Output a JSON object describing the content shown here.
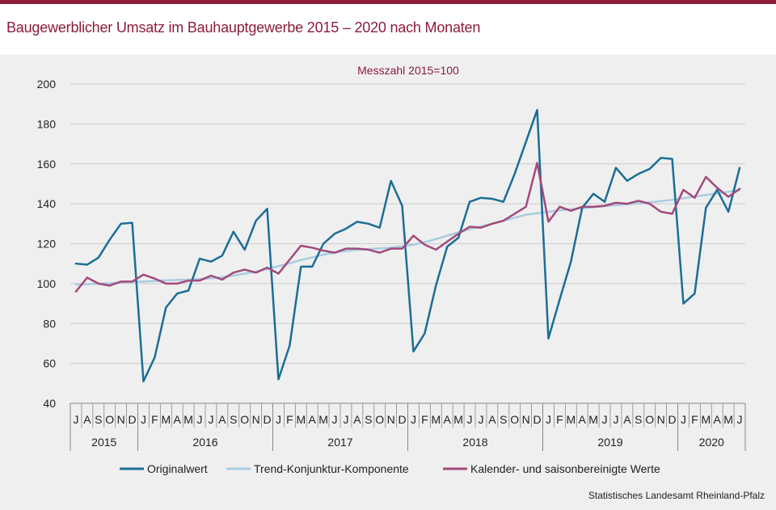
{
  "header": {
    "title": "Baugewerblicher Umsatz im Bauhauptgewerbe 2015 – 2020 nach Monaten"
  },
  "footer": {
    "source": "Statistisches Landesamt Rheinland-Pfalz"
  },
  "colors": {
    "accent": "#8c1c3c",
    "panel_bg": "#efefef",
    "gridline": "#cccccc"
  },
  "chart_data": {
    "type": "line",
    "title": "",
    "subtitle": "Messzahl 2015=100",
    "xlabel": "",
    "ylabel": "",
    "ylim": [
      40,
      200
    ],
    "yticks": [
      40,
      60,
      80,
      100,
      120,
      140,
      160,
      180,
      200
    ],
    "grid": true,
    "legend_position": "bottom",
    "month_labels": [
      "J",
      "A",
      "S",
      "O",
      "N",
      "D",
      "J",
      "F",
      "M",
      "A",
      "M",
      "J",
      "J",
      "A",
      "S",
      "O",
      "N",
      "D",
      "J",
      "F",
      "M",
      "A",
      "M",
      "J",
      "J",
      "A",
      "S",
      "O",
      "N",
      "D",
      "J",
      "F",
      "M",
      "A",
      "M",
      "J",
      "J",
      "A",
      "S",
      "O",
      "N",
      "D",
      "J",
      "F",
      "M",
      "A",
      "M",
      "J",
      "J",
      "A",
      "S",
      "O",
      "N",
      "D",
      "J",
      "F",
      "M",
      "A",
      "M",
      "J"
    ],
    "year_groups": [
      {
        "label": "2015",
        "months": 6
      },
      {
        "label": "2016",
        "months": 12
      },
      {
        "label": "2017",
        "months": 12
      },
      {
        "label": "2018",
        "months": 12
      },
      {
        "label": "2019",
        "months": 12
      },
      {
        "label": "2020",
        "months": 6
      }
    ],
    "series": [
      {
        "name": "Originalwert",
        "color": "#1a6e96",
        "width": 2.5,
        "values": [
          110,
          109.5,
          113,
          122,
          130,
          130.5,
          51,
          63,
          88,
          95,
          96.5,
          112.5,
          111,
          114,
          126,
          117,
          131.5,
          137.5,
          52,
          69,
          108.5,
          108.5,
          120,
          125,
          127.5,
          131,
          130,
          128,
          151.5,
          139,
          66,
          75,
          99,
          118.5,
          123,
          141,
          143,
          142.5,
          141,
          155,
          171,
          187,
          72.5,
          92,
          111,
          138,
          145,
          141,
          158,
          151.5,
          155,
          157.5,
          163,
          162.5,
          90,
          95,
          138,
          147,
          136,
          158
        ]
      },
      {
        "name": "Trend-Konjunktur-Komponente",
        "color": "#a9cde0",
        "width": 2.5,
        "values": [
          99.5,
          99.7,
          100,
          100.2,
          100.5,
          100.8,
          101,
          101.3,
          101.6,
          101.8,
          102,
          102.3,
          102.7,
          103.2,
          104,
          105,
          106,
          107.3,
          108.7,
          110.2,
          111.8,
          113.2,
          114.5,
          115.5,
          116.3,
          116.9,
          117.3,
          117.6,
          118,
          118.7,
          119.5,
          120.8,
          122.3,
          124,
          125.7,
          127.3,
          128.7,
          130,
          131.5,
          133,
          134.5,
          135.3,
          136,
          136.7,
          137.3,
          137.8,
          138.3,
          138.8,
          139.3,
          139.8,
          140.2,
          140.7,
          141.3,
          142,
          142.8,
          143.6,
          144.4,
          145.2,
          146,
          146.8
        ]
      },
      {
        "name": "Kalender- und saisonbereinigte Werte",
        "color": "#a14a7c",
        "width": 2.5,
        "values": [
          96,
          103,
          100,
          99,
          101,
          101,
          104.5,
          102.5,
          100,
          100,
          101.5,
          101.5,
          104,
          102,
          105.5,
          107,
          105.5,
          108,
          105,
          112,
          119,
          118,
          116.5,
          115.5,
          117.5,
          117.5,
          117,
          115.5,
          117.5,
          117.5,
          124,
          119.5,
          117,
          121,
          125,
          128.5,
          128,
          130,
          131.5,
          135,
          138.5,
          160.5,
          131,
          138.5,
          136.5,
          138.5,
          138.5,
          139,
          140.5,
          140,
          141.5,
          140,
          136,
          135,
          147,
          143,
          153.5,
          148,
          143.5,
          147.5
        ]
      }
    ]
  }
}
